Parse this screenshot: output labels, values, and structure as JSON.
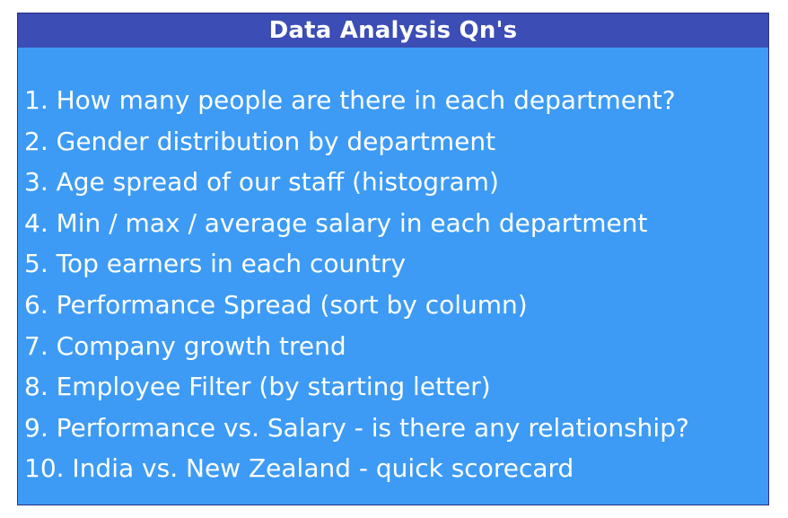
{
  "title": "Data Analysis Qn's",
  "items": [
    "1. How many people are there in each department?",
    "2. Gender distribution by department",
    "3. Age spread of our staff (histogram)",
    "4. Min / max / average salary in each department",
    "5. Top earners in each country",
    "6. Performance Spread (sort by column)",
    "7. Company growth trend",
    "8. Employee Filter (by starting letter)",
    "9. Performance vs. Salary - is there any relationship?",
    "10. India vs. New Zealand - quick scorecard"
  ],
  "colors": {
    "header_bg": "#3c4db5",
    "body_bg": "#3d9bf5",
    "text": "#ffffff"
  }
}
